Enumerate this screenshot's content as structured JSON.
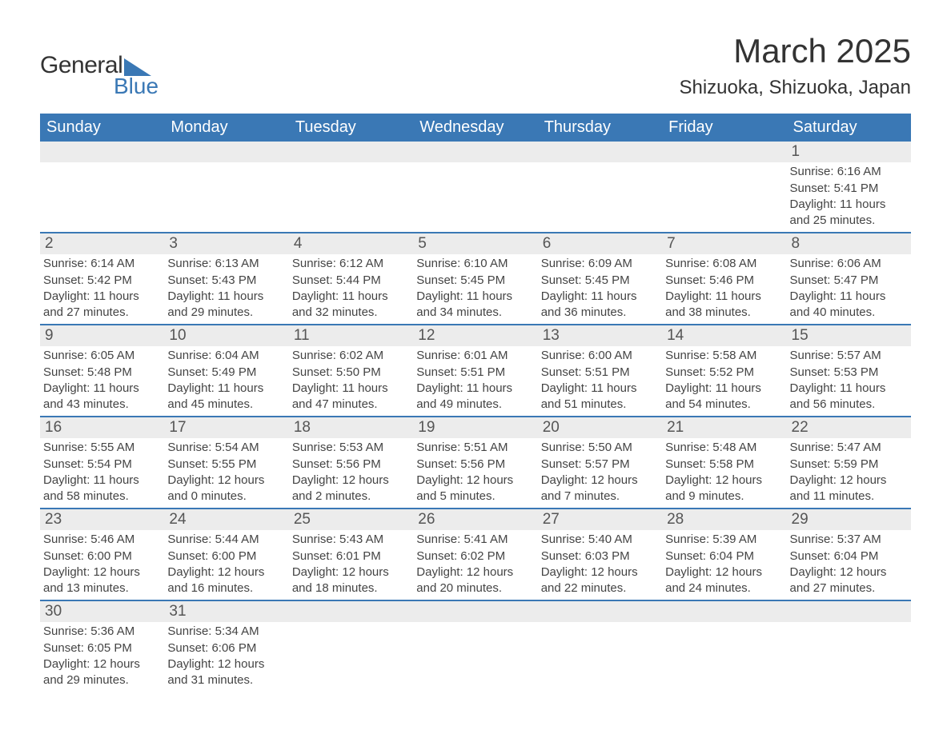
{
  "brand": {
    "name_part1": "General",
    "name_part2": "Blue",
    "logo_color": "#3a78b5",
    "text_color": "#333333"
  },
  "header": {
    "month_title": "March 2025",
    "location": "Shizuoka, Shizuoka, Japan"
  },
  "colors": {
    "header_bg": "#3a78b5",
    "header_text": "#ffffff",
    "daynum_bg": "#ececec",
    "row_border": "#3a78b5",
    "body_text": "#444444",
    "page_bg": "#ffffff"
  },
  "days_of_week": [
    "Sunday",
    "Monday",
    "Tuesday",
    "Wednesday",
    "Thursday",
    "Friday",
    "Saturday"
  ],
  "weeks": [
    [
      null,
      null,
      null,
      null,
      null,
      null,
      {
        "n": "1",
        "sunrise": "6:16 AM",
        "sunset": "5:41 PM",
        "daylight": "11 hours and 25 minutes."
      }
    ],
    [
      {
        "n": "2",
        "sunrise": "6:14 AM",
        "sunset": "5:42 PM",
        "daylight": "11 hours and 27 minutes."
      },
      {
        "n": "3",
        "sunrise": "6:13 AM",
        "sunset": "5:43 PM",
        "daylight": "11 hours and 29 minutes."
      },
      {
        "n": "4",
        "sunrise": "6:12 AM",
        "sunset": "5:44 PM",
        "daylight": "11 hours and 32 minutes."
      },
      {
        "n": "5",
        "sunrise": "6:10 AM",
        "sunset": "5:45 PM",
        "daylight": "11 hours and 34 minutes."
      },
      {
        "n": "6",
        "sunrise": "6:09 AM",
        "sunset": "5:45 PM",
        "daylight": "11 hours and 36 minutes."
      },
      {
        "n": "7",
        "sunrise": "6:08 AM",
        "sunset": "5:46 PM",
        "daylight": "11 hours and 38 minutes."
      },
      {
        "n": "8",
        "sunrise": "6:06 AM",
        "sunset": "5:47 PM",
        "daylight": "11 hours and 40 minutes."
      }
    ],
    [
      {
        "n": "9",
        "sunrise": "6:05 AM",
        "sunset": "5:48 PM",
        "daylight": "11 hours and 43 minutes."
      },
      {
        "n": "10",
        "sunrise": "6:04 AM",
        "sunset": "5:49 PM",
        "daylight": "11 hours and 45 minutes."
      },
      {
        "n": "11",
        "sunrise": "6:02 AM",
        "sunset": "5:50 PM",
        "daylight": "11 hours and 47 minutes."
      },
      {
        "n": "12",
        "sunrise": "6:01 AM",
        "sunset": "5:51 PM",
        "daylight": "11 hours and 49 minutes."
      },
      {
        "n": "13",
        "sunrise": "6:00 AM",
        "sunset": "5:51 PM",
        "daylight": "11 hours and 51 minutes."
      },
      {
        "n": "14",
        "sunrise": "5:58 AM",
        "sunset": "5:52 PM",
        "daylight": "11 hours and 54 minutes."
      },
      {
        "n": "15",
        "sunrise": "5:57 AM",
        "sunset": "5:53 PM",
        "daylight": "11 hours and 56 minutes."
      }
    ],
    [
      {
        "n": "16",
        "sunrise": "5:55 AM",
        "sunset": "5:54 PM",
        "daylight": "11 hours and 58 minutes."
      },
      {
        "n": "17",
        "sunrise": "5:54 AM",
        "sunset": "5:55 PM",
        "daylight": "12 hours and 0 minutes."
      },
      {
        "n": "18",
        "sunrise": "5:53 AM",
        "sunset": "5:56 PM",
        "daylight": "12 hours and 2 minutes."
      },
      {
        "n": "19",
        "sunrise": "5:51 AM",
        "sunset": "5:56 PM",
        "daylight": "12 hours and 5 minutes."
      },
      {
        "n": "20",
        "sunrise": "5:50 AM",
        "sunset": "5:57 PM",
        "daylight": "12 hours and 7 minutes."
      },
      {
        "n": "21",
        "sunrise": "5:48 AM",
        "sunset": "5:58 PM",
        "daylight": "12 hours and 9 minutes."
      },
      {
        "n": "22",
        "sunrise": "5:47 AM",
        "sunset": "5:59 PM",
        "daylight": "12 hours and 11 minutes."
      }
    ],
    [
      {
        "n": "23",
        "sunrise": "5:46 AM",
        "sunset": "6:00 PM",
        "daylight": "12 hours and 13 minutes."
      },
      {
        "n": "24",
        "sunrise": "5:44 AM",
        "sunset": "6:00 PM",
        "daylight": "12 hours and 16 minutes."
      },
      {
        "n": "25",
        "sunrise": "5:43 AM",
        "sunset": "6:01 PM",
        "daylight": "12 hours and 18 minutes."
      },
      {
        "n": "26",
        "sunrise": "5:41 AM",
        "sunset": "6:02 PM",
        "daylight": "12 hours and 20 minutes."
      },
      {
        "n": "27",
        "sunrise": "5:40 AM",
        "sunset": "6:03 PM",
        "daylight": "12 hours and 22 minutes."
      },
      {
        "n": "28",
        "sunrise": "5:39 AM",
        "sunset": "6:04 PM",
        "daylight": "12 hours and 24 minutes."
      },
      {
        "n": "29",
        "sunrise": "5:37 AM",
        "sunset": "6:04 PM",
        "daylight": "12 hours and 27 minutes."
      }
    ],
    [
      {
        "n": "30",
        "sunrise": "5:36 AM",
        "sunset": "6:05 PM",
        "daylight": "12 hours and 29 minutes."
      },
      {
        "n": "31",
        "sunrise": "5:34 AM",
        "sunset": "6:06 PM",
        "daylight": "12 hours and 31 minutes."
      },
      null,
      null,
      null,
      null,
      null
    ]
  ],
  "labels": {
    "sunrise_prefix": "Sunrise: ",
    "sunset_prefix": "Sunset: ",
    "daylight_prefix": "Daylight: "
  }
}
